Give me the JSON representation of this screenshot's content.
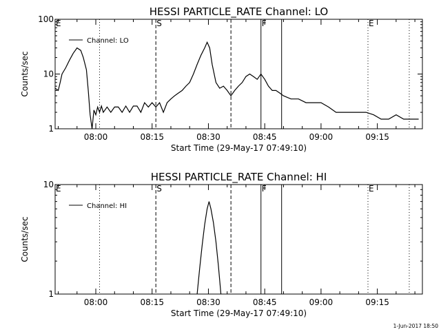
{
  "footer_date": "1-Jun-2017 18:50",
  "chart_data": [
    {
      "type": "line",
      "title": "HESSI PARTICLE_RATE Channel: LO",
      "ylabel": "Counts/sec",
      "xlabel": "Start Time (29-May-17 07:49:10)",
      "yscale": "log",
      "ylim": [
        1,
        100
      ],
      "yticks": [
        1,
        10,
        100
      ],
      "ytick_labels": [
        "1",
        "10",
        "100"
      ],
      "xlim": [
        "07:49:10",
        "09:27:00"
      ],
      "xticks": [
        "08:00",
        "08:15",
        "08:30",
        "08:45",
        "09:00",
        "09:15"
      ],
      "legend": {
        "position": "top-left",
        "label": "Channel: LO"
      },
      "markers": [
        {
          "label": "E",
          "time": "07:49:10",
          "style": "dotted"
        },
        {
          "label": "",
          "time": "08:01:00",
          "style": "dotted"
        },
        {
          "label": "S",
          "time": "08:16:00",
          "style": "dashed"
        },
        {
          "label": "",
          "time": "08:36:00",
          "style": "dashed"
        },
        {
          "label": "F",
          "time": "08:44:00",
          "style": "solid"
        },
        {
          "label": "",
          "time": "08:49:30",
          "style": "solid"
        },
        {
          "label": "E",
          "time": "09:12:30",
          "style": "dotted"
        },
        {
          "label": "",
          "time": "09:23:30",
          "style": "dotted"
        }
      ],
      "series": [
        {
          "name": "Channel: LO",
          "x": [
            "07:49:10",
            "07:50:00",
            "07:50:30",
            "07:51:00",
            "07:52:00",
            "07:53:00",
            "07:54:00",
            "07:55:00",
            "07:56:00",
            "07:56:40",
            "07:57:30",
            "07:58:00",
            "07:58:30",
            "07:59:00",
            "07:59:30",
            "08:00:00",
            "08:00:30",
            "08:01:00",
            "08:01:30",
            "08:02:00",
            "08:03:00",
            "08:04:00",
            "08:05:00",
            "08:06:00",
            "08:07:00",
            "08:08:00",
            "08:09:00",
            "08:10:00",
            "08:11:00",
            "08:12:00",
            "08:13:00",
            "08:14:00",
            "08:15:00",
            "08:16:00",
            "08:17:00",
            "08:18:00",
            "08:19:00",
            "08:20:00",
            "08:21:00",
            "08:22:00",
            "08:23:00",
            "08:24:00",
            "08:25:00",
            "08:26:00",
            "08:27:00",
            "08:28:00",
            "08:29:00",
            "08:29:40",
            "08:30:20",
            "08:31:00",
            "08:32:00",
            "08:33:00",
            "08:34:00",
            "08:35:00",
            "08:36:00",
            "08:37:00",
            "08:38:00",
            "08:39:00",
            "08:40:00",
            "08:41:00",
            "08:42:00",
            "08:43:00",
            "08:44:00",
            "08:45:00",
            "08:46:00",
            "08:47:00",
            "08:48:00",
            "08:49:00",
            "08:50:00",
            "08:52:00",
            "08:54:00",
            "08:56:00",
            "08:58:00",
            "09:00:00",
            "09:02:00",
            "09:04:00",
            "09:06:00",
            "09:08:00",
            "09:10:00",
            "09:12:00",
            "09:14:00",
            "09:16:00",
            "09:18:00",
            "09:20:00",
            "09:22:00",
            "09:24:00",
            "09:26:00"
          ],
          "y": [
            5.5,
            5,
            7,
            10,
            13,
            18,
            24,
            30,
            27,
            20,
            12,
            5,
            1.8,
            1,
            2.2,
            1.8,
            2.5,
            2,
            2.6,
            2,
            2.5,
            2,
            2.5,
            2.5,
            2,
            2.6,
            2,
            2.6,
            2.6,
            2,
            3,
            2.5,
            3,
            2.5,
            3,
            2,
            3,
            3.5,
            4,
            4.5,
            5,
            6,
            7,
            10,
            15,
            22,
            30,
            38,
            30,
            15,
            7,
            5.5,
            6,
            5,
            4,
            5,
            6,
            7,
            9,
            10,
            9,
            8,
            10,
            8,
            6,
            5,
            5,
            4.5,
            4,
            3.5,
            3.5,
            3,
            3,
            3,
            2.5,
            2,
            2,
            2,
            2,
            2,
            1.8,
            1.5,
            1.5,
            1.8,
            1.5,
            1.5,
            1.5
          ]
        }
      ]
    },
    {
      "type": "line",
      "title": "HESSI PARTICLE_RATE Channel: HI",
      "ylabel": "Counts/sec",
      "xlabel": "Start Time (29-May-17 07:49:10)",
      "yscale": "log",
      "ylim": [
        1,
        10
      ],
      "yticks": [
        1,
        10
      ],
      "ytick_labels": [
        "1",
        "10"
      ],
      "xlim": [
        "07:49:10",
        "09:27:00"
      ],
      "xticks": [
        "08:00",
        "08:15",
        "08:30",
        "08:45",
        "09:00",
        "09:15"
      ],
      "legend": {
        "position": "top-left",
        "label": "Channel: HI"
      },
      "markers": [
        {
          "label": "E",
          "time": "07:49:10",
          "style": "dotted"
        },
        {
          "label": "",
          "time": "08:01:00",
          "style": "dotted"
        },
        {
          "label": "S",
          "time": "08:16:00",
          "style": "dashed"
        },
        {
          "label": "",
          "time": "08:36:00",
          "style": "dashed"
        },
        {
          "label": "F",
          "time": "08:44:00",
          "style": "solid"
        },
        {
          "label": "",
          "time": "08:49:30",
          "style": "solid"
        },
        {
          "label": "E",
          "time": "09:12:30",
          "style": "dotted"
        },
        {
          "label": "",
          "time": "09:23:30",
          "style": "dotted"
        }
      ],
      "series": [
        {
          "name": "Channel: HI",
          "x": [
            "08:27:00",
            "08:27:40",
            "08:28:20",
            "08:29:00",
            "08:29:40",
            "08:30:10",
            "08:30:40",
            "08:31:20",
            "08:32:00",
            "08:32:40",
            "08:33:20"
          ],
          "y": [
            1,
            1.7,
            2.8,
            4.3,
            6,
            7,
            6,
            4.5,
            3,
            1.8,
            1
          ]
        }
      ]
    }
  ]
}
